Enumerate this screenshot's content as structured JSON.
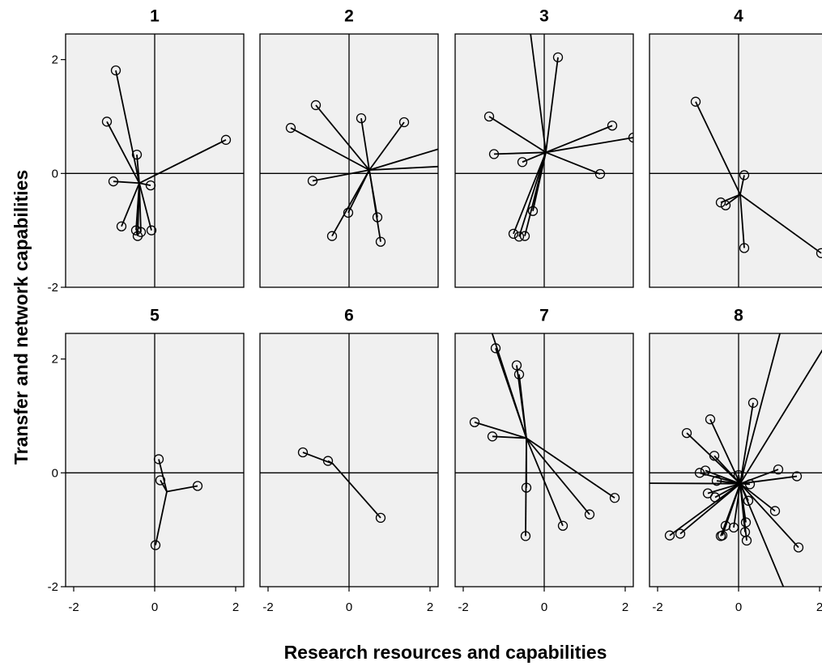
{
  "chart_data": {
    "type": "star",
    "x_label": "Research resources and capabilities",
    "y_label": "Transfer and network capabilities",
    "xlim": [
      -2.2,
      2.2
    ],
    "ylim": [
      -2,
      2.45
    ],
    "xticks": [
      -2,
      0,
      2
    ],
    "yticks": [
      -2,
      0,
      2
    ],
    "panels": [
      {
        "title": "1",
        "center_x": -0.38,
        "center_y": -0.17,
        "x": [
          -0.96,
          -1.18,
          -0.44,
          -1.02,
          -0.1,
          1.76,
          -0.82,
          -0.46,
          -0.34,
          -0.42,
          -0.08
        ],
        "y": [
          1.81,
          0.91,
          0.33,
          -0.14,
          -0.21,
          0.59,
          -0.93,
          -1.0,
          -1.03,
          -1.1,
          -1.0
        ]
      },
      {
        "title": "2",
        "center_x": 0.5,
        "center_y": 0.06,
        "x": [
          -0.82,
          -1.44,
          0.3,
          1.36,
          -0.9,
          -0.02,
          -0.42,
          0.7,
          0.78,
          3.0,
          3.0
        ],
        "y": [
          1.2,
          0.8,
          0.97,
          0.9,
          -0.13,
          -0.69,
          -1.1,
          -0.77,
          -1.2,
          0.6,
          0.15
        ]
      },
      {
        "title": "3",
        "center_x": 0.04,
        "center_y": 0.37,
        "x": [
          0.34,
          -1.36,
          -1.24,
          -0.54,
          1.68,
          1.38,
          2.2,
          -0.28,
          -0.76,
          -0.62,
          -0.48,
          -0.4
        ],
        "y": [
          2.04,
          1.0,
          0.34,
          0.2,
          0.84,
          -0.01,
          0.63,
          -0.66,
          -1.06,
          -1.11,
          -1.1,
          2.8
        ]
      },
      {
        "title": "4",
        "center_x": 0.04,
        "center_y": -0.37,
        "x": [
          -1.06,
          0.14,
          -0.44,
          -0.32,
          0.14,
          2.04
        ],
        "y": [
          1.26,
          -0.03,
          -0.51,
          -0.56,
          -1.31,
          -1.4
        ]
      },
      {
        "title": "5",
        "center_x": 0.3,
        "center_y": -0.33,
        "x": [
          0.1,
          0.14,
          1.06,
          0.02
        ],
        "y": [
          0.24,
          -0.13,
          -0.23,
          -1.27
        ]
      },
      {
        "title": "6",
        "center_x": -0.4,
        "center_y": 0.16,
        "x": [
          -1.14,
          -0.52,
          0.78
        ],
        "y": [
          0.36,
          0.21,
          -0.79
        ]
      },
      {
        "title": "7",
        "center_x": -0.44,
        "center_y": 0.61,
        "x": [
          -1.2,
          -0.68,
          -0.62,
          -1.72,
          -1.28,
          -0.44,
          -0.46,
          0.46,
          1.12,
          1.74,
          -1.4
        ],
        "y": [
          2.19,
          1.89,
          1.73,
          0.89,
          0.64,
          -0.26,
          -1.11,
          -0.93,
          -0.73,
          -0.44,
          2.7
        ]
      },
      {
        "title": "8",
        "center_x": 0.04,
        "center_y": -0.19,
        "x": [
          0.36,
          -0.7,
          -1.28,
          -0.6,
          -0.96,
          -0.82,
          0.0,
          0.98,
          1.44,
          -0.76,
          -0.54,
          -0.58,
          0.28,
          0.24,
          0.9,
          1.48,
          -0.32,
          -0.12,
          -0.44,
          -0.4,
          0.18,
          0.16,
          0.2,
          -1.7,
          -1.44,
          -2.6,
          1.3,
          2.8,
          1.4
        ],
        "y": [
          1.23,
          0.94,
          0.7,
          0.3,
          0.0,
          0.04,
          -0.04,
          0.06,
          -0.06,
          -0.36,
          -0.14,
          -0.43,
          -0.2,
          -0.49,
          -0.67,
          -1.31,
          -0.93,
          -0.96,
          -1.11,
          -1.1,
          -0.87,
          -1.04,
          -1.19,
          -1.1,
          -1.07,
          -0.18,
          3.2,
          3.0,
          -2.5
        ]
      }
    ]
  }
}
